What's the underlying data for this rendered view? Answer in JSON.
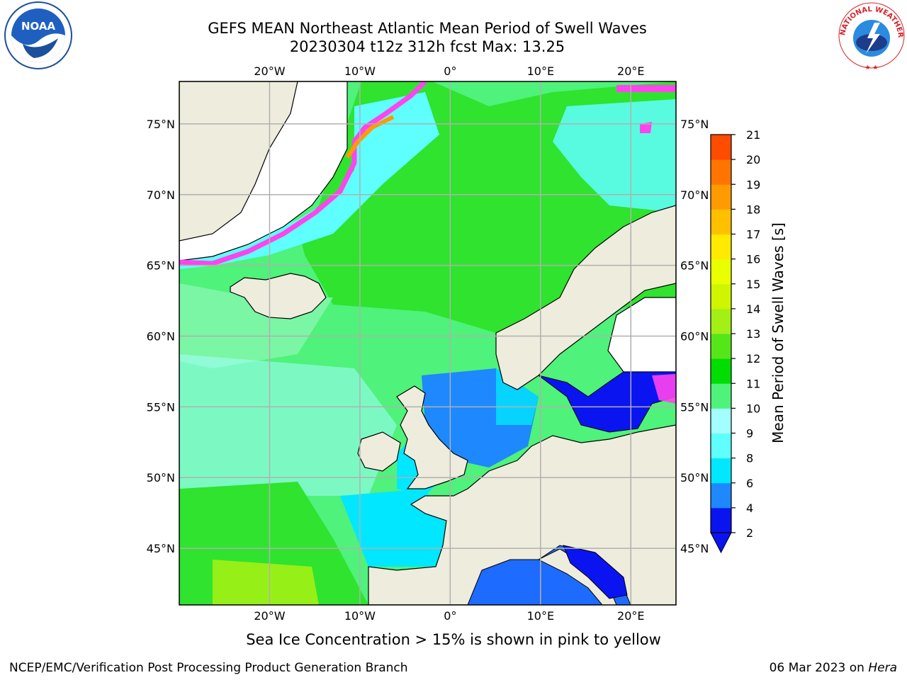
{
  "title": {
    "line1": "GEFS MEAN Northeast Atlantic Mean Period of Swell Waves",
    "line2": "20230304 t12z 312h fcst   Max: 13.25"
  },
  "logos": {
    "left": "NOAA",
    "right": "NATIONAL WEATHER SERVICE"
  },
  "map": {
    "projection": "plate-carree",
    "lon_range": [
      -30,
      25
    ],
    "lat_range": [
      41,
      78
    ],
    "lon_ticks": [
      "20°W",
      "10°W",
      "0°",
      "10°E",
      "20°E"
    ],
    "lat_ticks": [
      "75°N",
      "70°N",
      "65°N",
      "60°N",
      "55°N",
      "50°N",
      "45°N"
    ],
    "land_color": "#eeecdc",
    "ocean_colors": {
      "open_atlantic": "#4ff27a",
      "norwegian_sea": "#2fe32f",
      "greenland_sea": "#5fffff",
      "north_sea": "#1e88ff",
      "baltic": "#0a14f0",
      "mediterranean": "#1e6bff",
      "ice_edge": "#ff44ee"
    }
  },
  "colorbar": {
    "label": "Mean Period of Swell Waves [s]",
    "ticks": [
      "2",
      "4",
      "6",
      "8",
      "9",
      "10",
      "11",
      "12",
      "13",
      "14",
      "15",
      "16",
      "17",
      "18",
      "19",
      "20",
      "21"
    ],
    "colors": [
      "#0a14f0",
      "#1e88ff",
      "#00e7ff",
      "#5fffff",
      "#a3ffff",
      "#4ff27a",
      "#00dd00",
      "#55e61a",
      "#a3ef16",
      "#d0f500",
      "#eaff00",
      "#ffea00",
      "#ffc000",
      "#ff9a00",
      "#ff7500",
      "#ff4c00",
      "#ff1a00"
    ],
    "extend": "min"
  },
  "caption": "Sea Ice Concentration > 15% is shown in pink to yellow",
  "footer": {
    "left": "NCEP/EMC/Verification Post Processing Product Generation Branch",
    "right_date": "06 Mar 2023 on ",
    "right_host": "Hera"
  }
}
